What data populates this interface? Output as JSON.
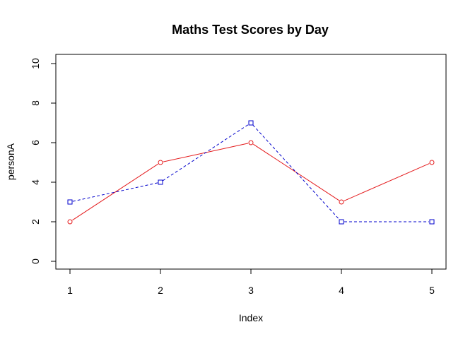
{
  "chart_data": {
    "type": "line",
    "title": "Maths Test Scores by Day",
    "xlabel": "Index",
    "ylabel": "personA",
    "x": [
      1,
      2,
      3,
      4,
      5
    ],
    "xlim": [
      1,
      5
    ],
    "ylim": [
      0,
      10
    ],
    "x_ticks": [
      "1",
      "2",
      "3",
      "4",
      "5"
    ],
    "y_ticks": [
      "0",
      "2",
      "4",
      "6",
      "8",
      "10"
    ],
    "grid": false,
    "series": [
      {
        "values": [
          2,
          5,
          6,
          3,
          5
        ],
        "color": "#e41a1c",
        "line": "solid",
        "marker": "circle"
      },
      {
        "values": [
          3,
          4,
          7,
          2,
          2
        ],
        "color": "#0000cc",
        "line": "dashed",
        "marker": "square"
      }
    ]
  }
}
